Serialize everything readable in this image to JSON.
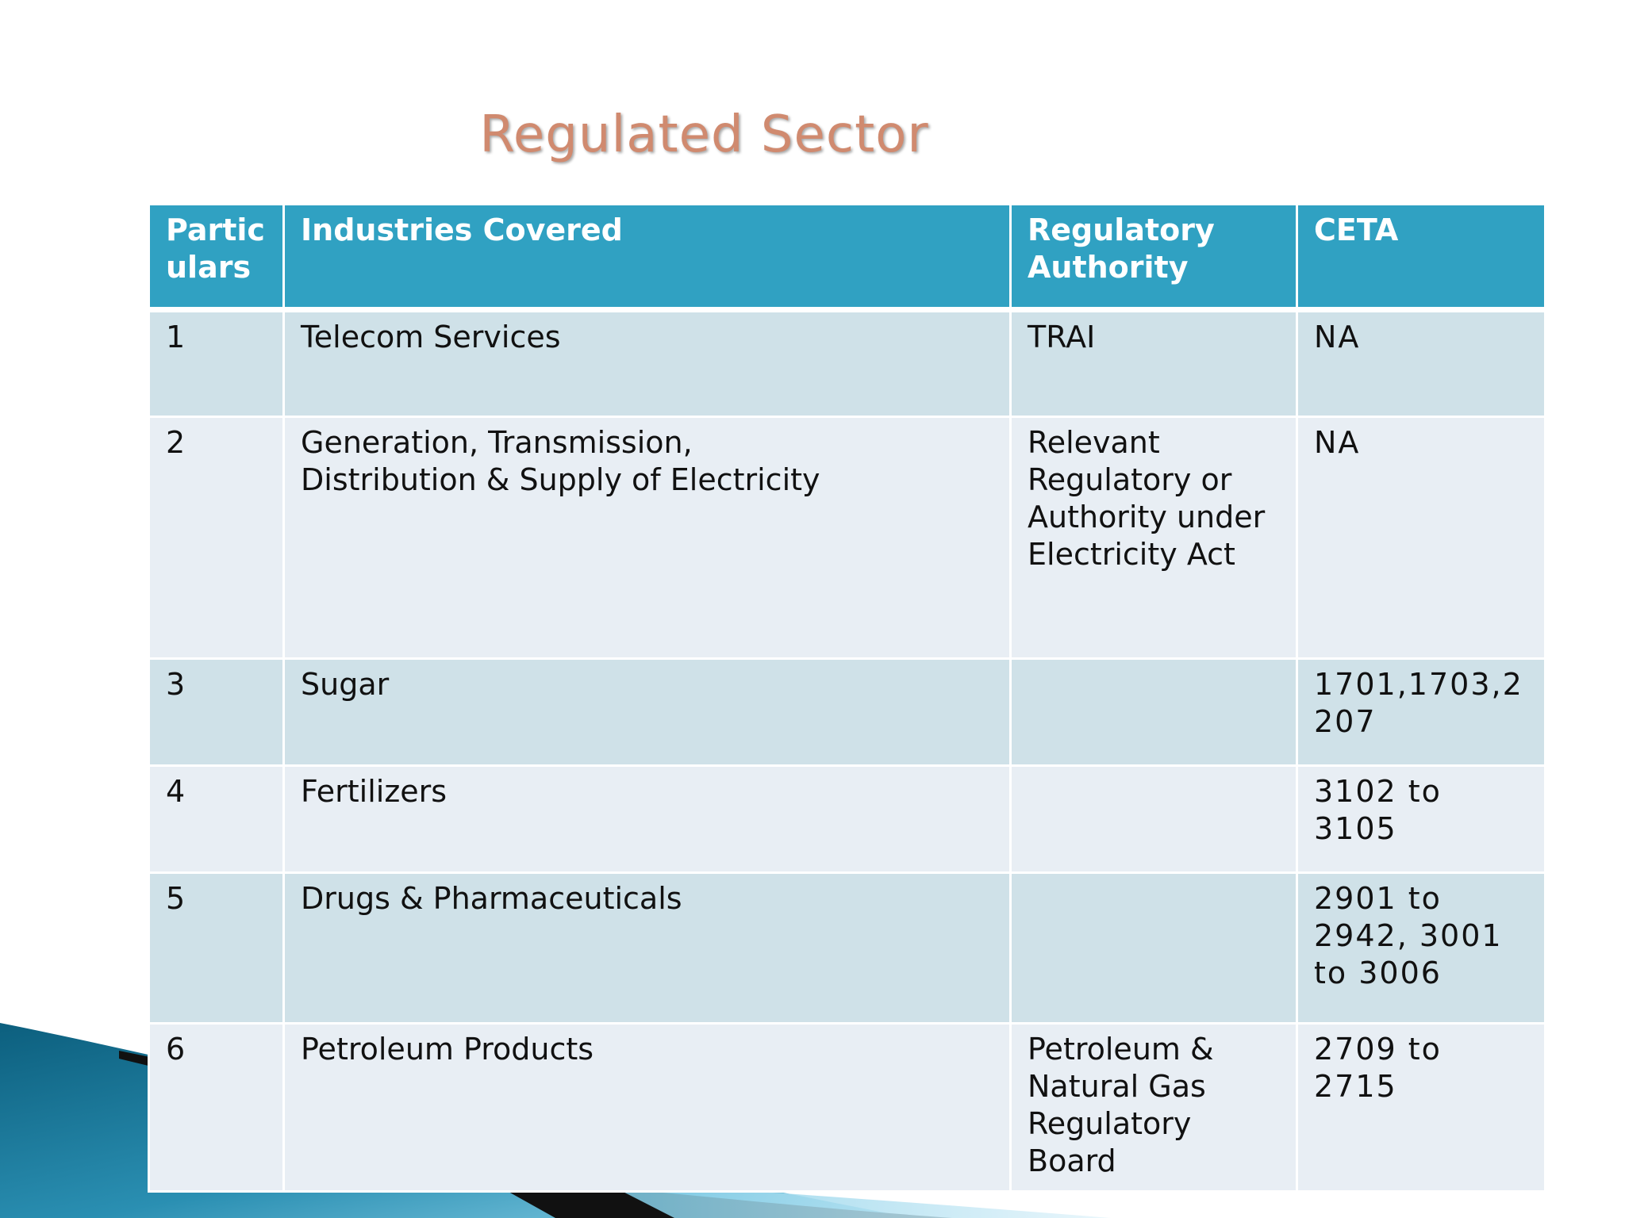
{
  "slide": {
    "title": "Regulated Sector"
  },
  "table": {
    "headers": [
      "Partic\nulars",
      "Industries Covered",
      "Regulatory\nAuthority",
      "CETA"
    ],
    "rows": [
      [
        "1",
        "Telecom Services",
        "TRAI",
        "NA"
      ],
      [
        "2",
        "Generation, Transmission,\nDistribution & Supply of Electricity",
        "Relevant\nRegulatory or\nAuthority under\nElectricity Act",
        "NA"
      ],
      [
        "3",
        "Sugar",
        "",
        "1701,1703,2\n207"
      ],
      [
        "4",
        "Fertilizers",
        "",
        "3102 to 3105"
      ],
      [
        "5",
        "Drugs & Pharmaceuticals",
        "",
        "2901 to\n2942, 3001\nto 3006"
      ],
      [
        "6",
        "Petroleum Products",
        "Petroleum &\nNatural Gas\nRegulatory\nBoard",
        "2709 to 2715"
      ]
    ]
  },
  "colors": {
    "title": "#d08a6f",
    "header_bg": "#30a1c2",
    "row_dark": "#cfe1e8",
    "row_light": "#e8eef4",
    "swoosh_blue": "#2a8fb2",
    "swoosh_dark": "#111111"
  }
}
